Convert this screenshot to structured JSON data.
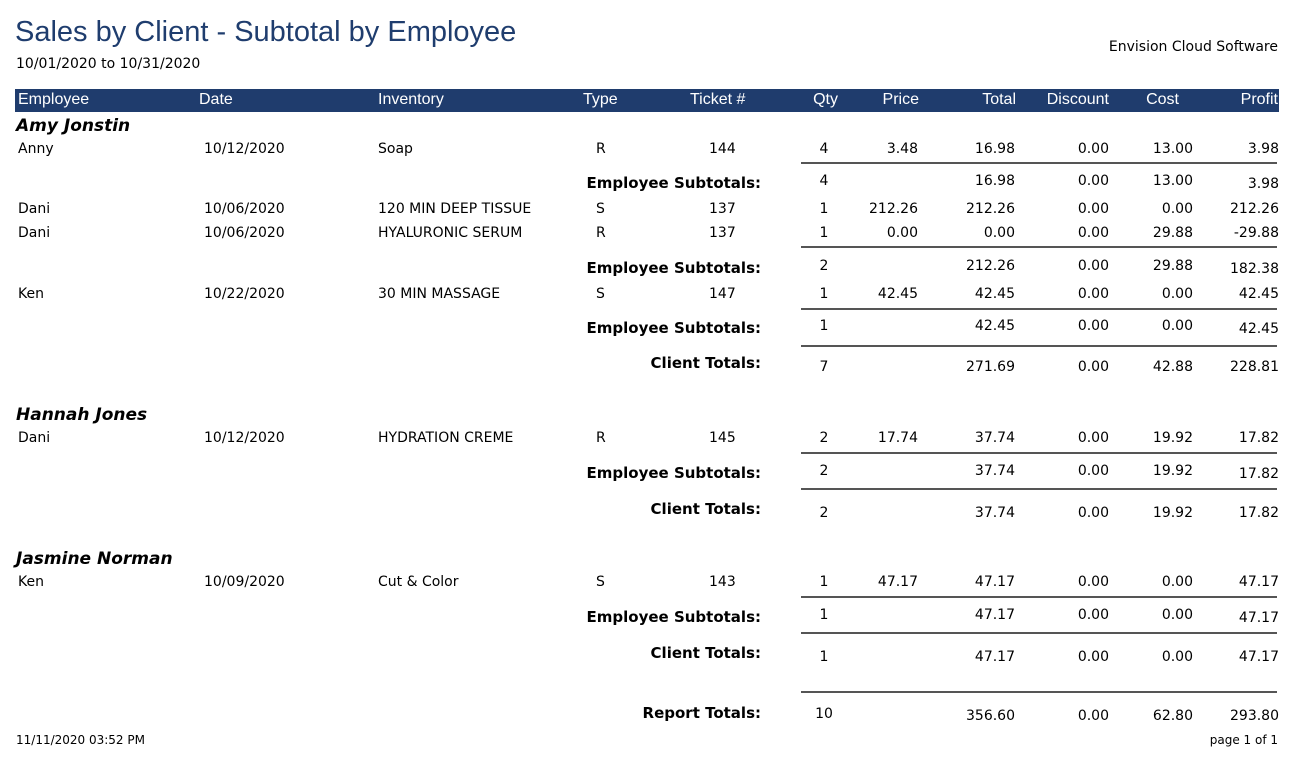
{
  "report": {
    "title": "Sales by Client - Subtotal by Employee",
    "date_range": "10/01/2020 to 10/31/2020",
    "company": "Envision Cloud Software"
  },
  "columns": [
    "Employee",
    "Date",
    "Inventory",
    "Type",
    "Ticket #",
    "Qty",
    "Price",
    "Total",
    "Discount",
    "Cost",
    "Profit"
  ],
  "clients": [
    {
      "name": "Amy Jonstin",
      "groups": [
        {
          "rows": [
            {
              "employee": "Anny",
              "date": "10/12/2020",
              "inventory": "Soap",
              "type": "R",
              "ticket": "144",
              "qty": "4",
              "price": "3.48",
              "total": "16.98",
              "discount": "0.00",
              "cost": "13.00",
              "profit": "3.98"
            }
          ],
          "subtotal": {
            "label": "Employee Subtotals:",
            "qty": "4",
            "total": "16.98",
            "discount": "0.00",
            "cost": "13.00",
            "profit": "3.98"
          }
        },
        {
          "rows": [
            {
              "employee": "Dani",
              "date": "10/06/2020",
              "inventory": "120 MIN DEEP TISSUE",
              "type": "S",
              "ticket": "137",
              "qty": "1",
              "price": "212.26",
              "total": "212.26",
              "discount": "0.00",
              "cost": "0.00",
              "profit": "212.26"
            },
            {
              "employee": "Dani",
              "date": "10/06/2020",
              "inventory": "HYALURONIC SERUM",
              "type": "R",
              "ticket": "137",
              "qty": "1",
              "price": "0.00",
              "total": "0.00",
              "discount": "0.00",
              "cost": "29.88",
              "profit": "-29.88"
            }
          ],
          "subtotal": {
            "label": "Employee Subtotals:",
            "qty": "2",
            "total": "212.26",
            "discount": "0.00",
            "cost": "29.88",
            "profit": "182.38"
          }
        },
        {
          "rows": [
            {
              "employee": "Ken",
              "date": "10/22/2020",
              "inventory": "30 MIN MASSAGE",
              "type": "S",
              "ticket": "147",
              "qty": "1",
              "price": "42.45",
              "total": "42.45",
              "discount": "0.00",
              "cost": "0.00",
              "profit": "42.45"
            }
          ],
          "subtotal": {
            "label": "Employee Subtotals:",
            "qty": "1",
            "total": "42.45",
            "discount": "0.00",
            "cost": "0.00",
            "profit": "42.45"
          }
        }
      ],
      "total": {
        "label": "Client  Totals:",
        "qty": "7",
        "total": "271.69",
        "discount": "0.00",
        "cost": "42.88",
        "profit": "228.81"
      }
    },
    {
      "name": "Hannah Jones",
      "groups": [
        {
          "rows": [
            {
              "employee": "Dani",
              "date": "10/12/2020",
              "inventory": "HYDRATION CREME",
              "type": "R",
              "ticket": "145",
              "qty": "2",
              "price": "17.74",
              "total": "37.74",
              "discount": "0.00",
              "cost": "19.92",
              "profit": "17.82"
            }
          ],
          "subtotal": {
            "label": "Employee Subtotals:",
            "qty": "2",
            "total": "37.74",
            "discount": "0.00",
            "cost": "19.92",
            "profit": "17.82"
          }
        }
      ],
      "total": {
        "label": "Client  Totals:",
        "qty": "2",
        "total": "37.74",
        "discount": "0.00",
        "cost": "19.92",
        "profit": "17.82"
      }
    },
    {
      "name": "Jasmine Norman",
      "groups": [
        {
          "rows": [
            {
              "employee": "Ken",
              "date": "10/09/2020",
              "inventory": "Cut & Color",
              "type": "S",
              "ticket": "143",
              "qty": "1",
              "price": "47.17",
              "total": "47.17",
              "discount": "0.00",
              "cost": "0.00",
              "profit": "47.17"
            }
          ],
          "subtotal": {
            "label": "Employee Subtotals:",
            "qty": "1",
            "total": "47.17",
            "discount": "0.00",
            "cost": "0.00",
            "profit": "47.17"
          }
        }
      ],
      "total": {
        "label": "Client  Totals:",
        "qty": "1",
        "total": "47.17",
        "discount": "0.00",
        "cost": "0.00",
        "profit": "47.17"
      }
    }
  ],
  "report_total": {
    "label": "Report Totals:",
    "qty": "10",
    "total": "356.60",
    "discount": "0.00",
    "cost": "62.80",
    "profit": "293.80"
  },
  "footer": {
    "printed": "11/11/2020 03:52 PM",
    "page": "page 1 of 1"
  }
}
